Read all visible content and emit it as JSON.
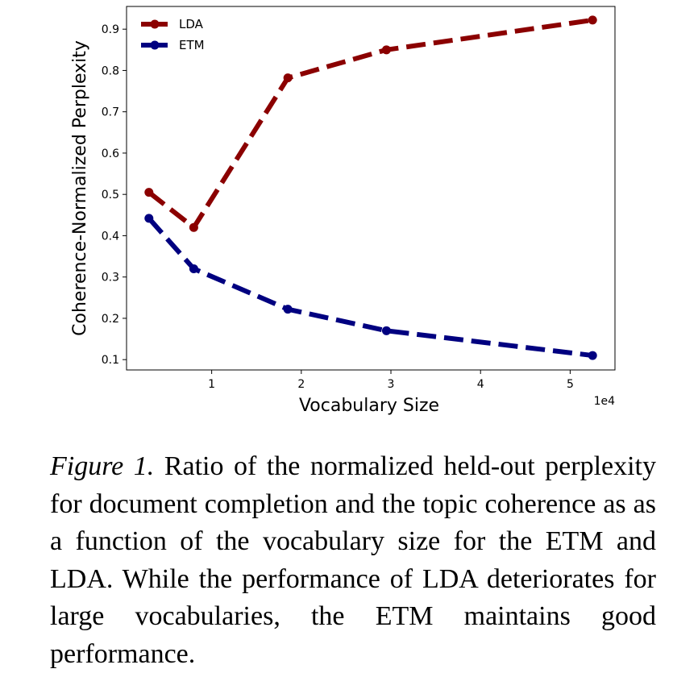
{
  "chart_data": {
    "type": "line",
    "xlabel": "Vocabulary Size",
    "ylabel": "Coherence-Normalized Perplexity",
    "x_offset_label": "1e4",
    "xlim": [
      0.05,
      5.5
    ],
    "ylim": [
      0.075,
      0.955
    ],
    "xticks": [
      1,
      2,
      3,
      4,
      5
    ],
    "xtick_labels": [
      "1",
      "2",
      "3",
      "4",
      "5"
    ],
    "yticks": [
      0.1,
      0.2,
      0.3,
      0.4,
      0.5,
      0.6,
      0.7,
      0.8,
      0.9
    ],
    "ytick_labels": [
      "0.1",
      "0.2",
      "0.3",
      "0.4",
      "0.5",
      "0.6",
      "0.7",
      "0.8",
      "0.9"
    ],
    "grid": false,
    "legend_position": "top-left",
    "series": [
      {
        "name": "LDA",
        "color": "#8b0000",
        "x": [
          0.3,
          0.8,
          1.85,
          2.95,
          5.25
        ],
        "y": [
          0.505,
          0.42,
          0.782,
          0.85,
          0.922
        ]
      },
      {
        "name": "ETM",
        "color": "#000080",
        "x": [
          0.3,
          0.8,
          1.85,
          2.95,
          5.25
        ],
        "y": [
          0.442,
          0.32,
          0.222,
          0.17,
          0.11
        ]
      }
    ]
  },
  "caption": {
    "label": "Figure 1.",
    "text": "Ratio of the normalized held-out perplexity for document completion and the topic coherence as as a function of the vocabulary size for the ETM and LDA.  While the performance of LDA deteriorates for large vocabularies, the ETM maintains good performance."
  }
}
